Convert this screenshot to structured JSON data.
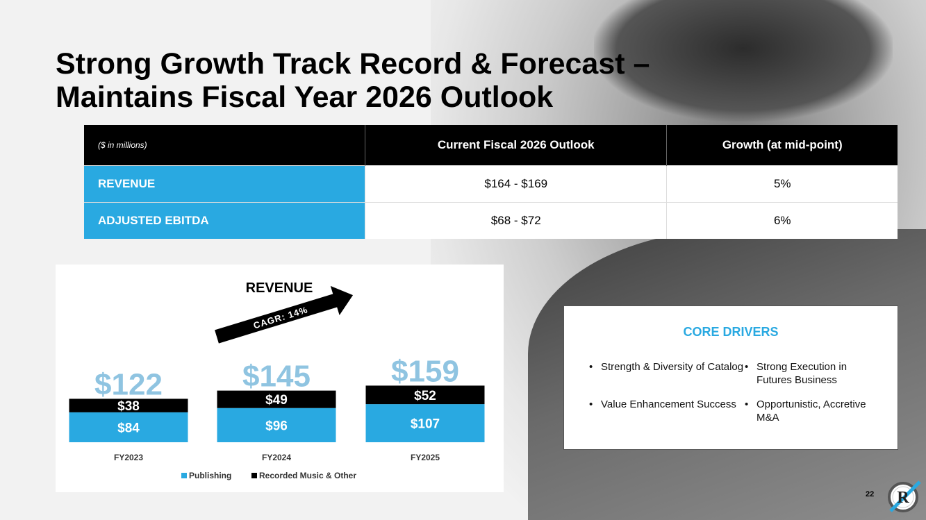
{
  "slide": {
    "title_line1": "Strong Growth Track Record & Forecast –",
    "title_line2": "Maintains Fiscal Year 2026 Outlook",
    "page_number": "22"
  },
  "outlook_table": {
    "note": "($ in millions)",
    "headers": [
      "Current Fiscal 2026 Outlook",
      "Growth (at mid-point)"
    ],
    "rows": [
      {
        "label": "REVENUE",
        "outlook": "$164 - $169",
        "growth": "5%"
      },
      {
        "label": "ADJUSTED EBITDA",
        "outlook": "$68 - $72",
        "growth": "6%"
      }
    ]
  },
  "core_drivers": {
    "title": "CORE DRIVERS",
    "items": [
      "Strength & Diversity of Catalog",
      "Strong Execution in Futures Business",
      "Value Enhancement Success",
      "Opportunistic, Accretive M&A"
    ]
  },
  "colors": {
    "accent": "#29a9e1",
    "total_label": "#8fc4e1",
    "recorded": "#000000"
  },
  "chart_data": {
    "type": "bar",
    "stacked": true,
    "title": "REVENUE",
    "annotation": "CAGR: 14%",
    "categories": [
      "FY2023",
      "FY2024",
      "FY2025"
    ],
    "series": [
      {
        "name": "Publishing",
        "values": [
          84,
          96,
          107
        ],
        "labels": [
          "$84",
          "$96",
          "$107"
        ],
        "color": "#29a9e1"
      },
      {
        "name": "Recorded Music & Other",
        "values": [
          38,
          49,
          52
        ],
        "labels": [
          "$38",
          "$49",
          "$52"
        ],
        "color": "#000000"
      }
    ],
    "totals": [
      122,
      145,
      159
    ],
    "total_labels": [
      "$122",
      "$145",
      "$159"
    ],
    "xlabel": "",
    "ylabel": "",
    "legend": "bottom",
    "grid": false
  }
}
